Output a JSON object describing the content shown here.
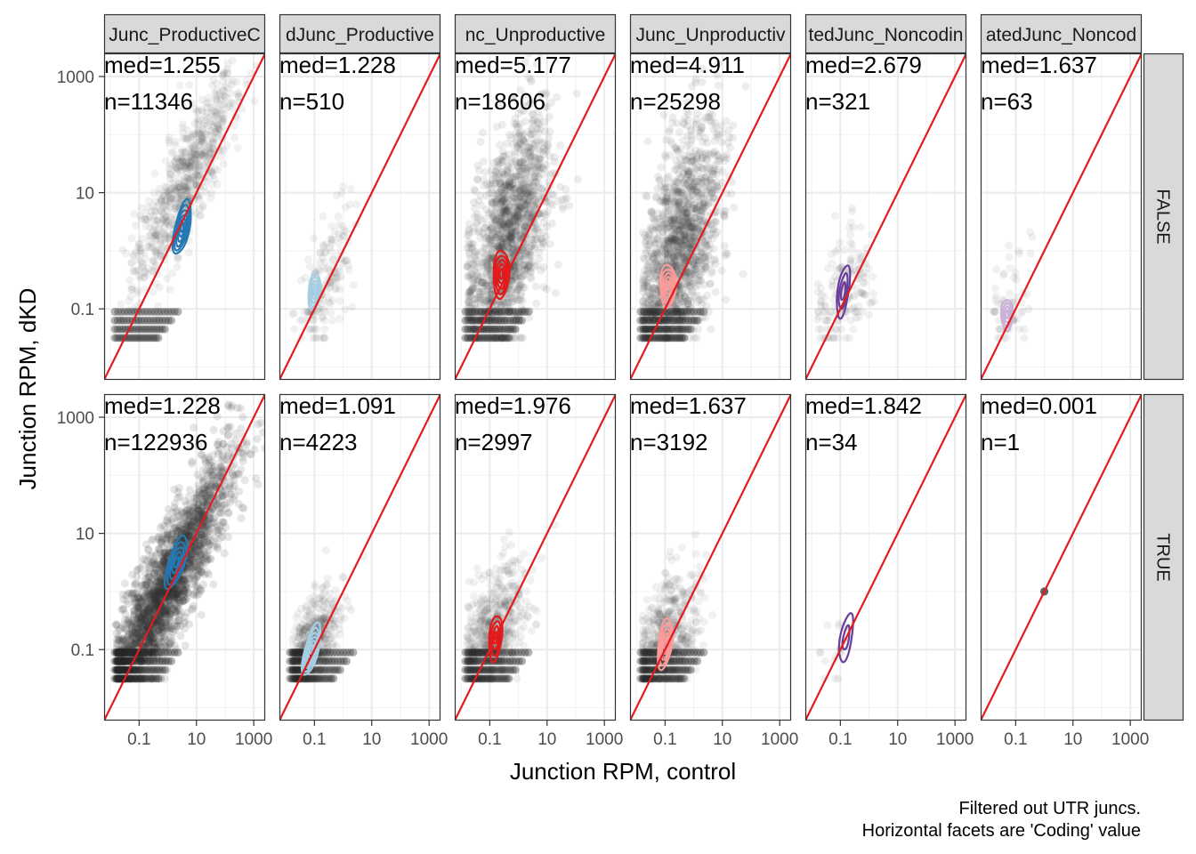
{
  "chart_data": {
    "type": "scatter",
    "xlabel": "Junction RPM, control",
    "ylabel": "Junction RPM, dKD",
    "x_scale": "log10",
    "y_scale": "log10",
    "xlim": [
      0.006,
      2500
    ],
    "ylim": [
      0.006,
      2500
    ],
    "x_ticks": [
      "0.1",
      "10",
      "1000"
    ],
    "y_ticks": [
      "0.1",
      "10",
      "1000"
    ],
    "grid": true,
    "caption": [
      "Filtered out UTR juncs.",
      "Horizontal facets are 'Coding' value"
    ],
    "reference_line": {
      "slope": 1,
      "intercept": 0,
      "color": "#e41a1c"
    },
    "facet_columns": [
      {
        "label": "Junc_ProductiveC",
        "contour_color": "#2678b2"
      },
      {
        "label": "dJunc_Productive",
        "contour_color": "#a6cee3"
      },
      {
        "label": "nc_Unproductive",
        "contour_color": "#e31a1c"
      },
      {
        "label": "Junc_Unproductiv",
        "contour_color": "#fb9a99"
      },
      {
        "label": "tedJunc_Noncodin",
        "contour_color": "#6a3d9a"
      },
      {
        "label": "atedJunc_Noncod",
        "contour_color": "#cab2d6"
      }
    ],
    "facet_rows": [
      "FALSE",
      "TRUE"
    ],
    "panels": [
      {
        "row": 0,
        "col": 0,
        "med": "med=1.255",
        "n": "n=11346",
        "density": "medium",
        "cloud": {
          "cx": 0.6,
          "cy": 1.2,
          "sx": 0.9,
          "sy": 0.9,
          "rho": 0.85
        },
        "contour": {
          "cx": 0.5,
          "cy": 0.4,
          "sx": 0.55,
          "sy": 0.8,
          "angle": 58,
          "levels": 6
        }
      },
      {
        "row": 0,
        "col": 1,
        "med": "med=1.228",
        "n": "n=510",
        "density": "sparse",
        "cloud": {
          "cx": -0.6,
          "cy": -0.6,
          "sx": 0.45,
          "sy": 0.7,
          "rho": 0.6
        },
        "contour": {
          "cx": -1.0,
          "cy": -0.7,
          "sx": 0.35,
          "sy": 0.75,
          "angle": 65,
          "levels": 5
        }
      },
      {
        "row": 0,
        "col": 2,
        "med": "med=5.177",
        "n": "n=18606",
        "density": "dense",
        "cloud": {
          "cx": -0.4,
          "cy": 0.2,
          "sx": 0.75,
          "sy": 1.05,
          "rho": 0.55
        },
        "contour": {
          "cx": -0.6,
          "cy": -0.4,
          "sx": 0.45,
          "sy": 1.1,
          "angle": 78,
          "levels": 5
        }
      },
      {
        "row": 0,
        "col": 3,
        "med": "med=4.911",
        "n": "n=25298",
        "density": "dense",
        "cloud": {
          "cx": -0.5,
          "cy": 0.0,
          "sx": 0.7,
          "sy": 1.05,
          "rho": 0.5
        },
        "contour": {
          "cx": -0.9,
          "cy": -0.6,
          "sx": 0.4,
          "sy": 1.1,
          "angle": 80,
          "levels": 5
        }
      },
      {
        "row": 0,
        "col": 4,
        "med": "med=2.679",
        "n": "n=321",
        "density": "sparse",
        "cloud": {
          "cx": -0.9,
          "cy": -0.8,
          "sx": 0.5,
          "sy": 0.6,
          "rho": 0.4
        },
        "contour": {
          "cx": -0.9,
          "cy": -0.7,
          "sx": 0.55,
          "sy": 0.75,
          "angle": 70,
          "levels": 3
        }
      },
      {
        "row": 0,
        "col": 5,
        "med": "med=1.637",
        "n": "n=63",
        "density": "faint",
        "cloud": {
          "cx": -1.3,
          "cy": -1.0,
          "sx": 0.4,
          "sy": 0.5,
          "rho": 0.4
        },
        "contour": {
          "cx": -1.3,
          "cy": -1.1,
          "sx": 0.3,
          "sy": 0.85,
          "angle": 80,
          "levels": 4
        }
      },
      {
        "row": 1,
        "col": 0,
        "med": "med=1.228",
        "n": "n=122936",
        "density": "verydense",
        "cloud": {
          "cx": -0.1,
          "cy": 0.0,
          "sx": 1.15,
          "sy": 1.15,
          "rho": 0.9
        },
        "contour": {
          "cx": 0.3,
          "cy": 0.5,
          "sx": 0.6,
          "sy": 0.75,
          "angle": 48,
          "levels": 5
        }
      },
      {
        "row": 1,
        "col": 1,
        "med": "med=1.091",
        "n": "n=4223",
        "density": "medium",
        "cloud": {
          "cx": -1.2,
          "cy": -1.1,
          "sx": 0.5,
          "sy": 0.55,
          "rho": 0.65
        },
        "contour": {
          "cx": -1.1,
          "cy": -1.0,
          "sx": 0.55,
          "sy": 0.7,
          "angle": 55,
          "levels": 6
        }
      },
      {
        "row": 1,
        "col": 2,
        "med": "med=1.976",
        "n": "n=2997",
        "density": "medium",
        "cloud": {
          "cx": -1.0,
          "cy": -0.9,
          "sx": 0.6,
          "sy": 0.65,
          "rho": 0.55
        },
        "contour": {
          "cx": -0.8,
          "cy": -0.8,
          "sx": 0.45,
          "sy": 0.85,
          "angle": 72,
          "levels": 4
        }
      },
      {
        "row": 1,
        "col": 3,
        "med": "med=1.637",
        "n": "n=3192",
        "density": "medium",
        "cloud": {
          "cx": -1.1,
          "cy": -1.0,
          "sx": 0.6,
          "sy": 0.65,
          "rho": 0.55
        },
        "contour": {
          "cx": -1.0,
          "cy": -0.9,
          "sx": 0.5,
          "sy": 0.85,
          "angle": 68,
          "levels": 5
        }
      },
      {
        "row": 1,
        "col": 4,
        "med": "med=1.842",
        "n": "n=34",
        "density": "none",
        "cloud": {
          "cx": -1.2,
          "cy": -1.2,
          "sx": 0.3,
          "sy": 0.3,
          "rho": 0.3
        },
        "contour": {
          "cx": -0.8,
          "cy": -0.8,
          "sx": 0.55,
          "sy": 0.8,
          "angle": 65,
          "levels": 2
        }
      },
      {
        "row": 1,
        "col": 5,
        "med": "med=0.001",
        "n": "n=1",
        "density": "none",
        "cloud": {
          "cx": 0,
          "cy": 0,
          "sx": 0,
          "sy": 0,
          "rho": 0
        },
        "contour": {
          "cx": 0,
          "cy": 0,
          "sx": 0,
          "sy": 0,
          "angle": 0,
          "levels": 0
        }
      }
    ]
  }
}
